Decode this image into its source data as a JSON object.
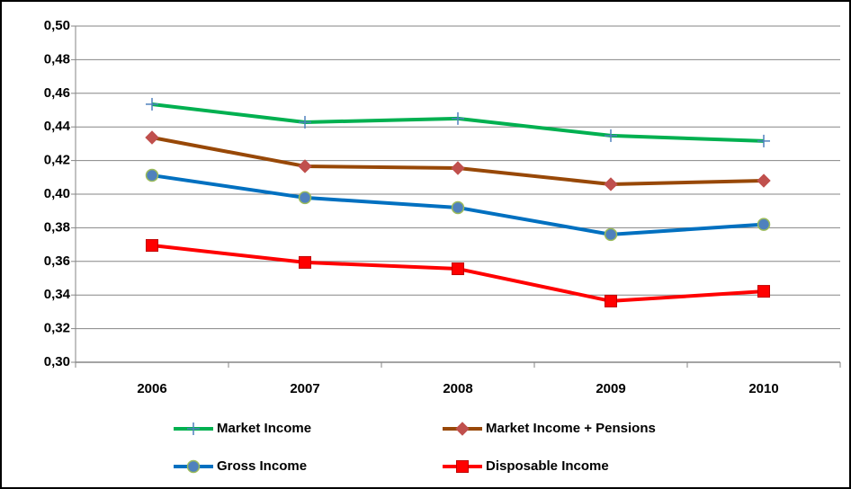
{
  "chart_data": {
    "type": "line",
    "categories": [
      "2006",
      "2007",
      "2008",
      "2009",
      "2010"
    ],
    "series": [
      {
        "name": "Market Income",
        "color": "#00b050",
        "marker": "plus",
        "marker_color": "#4f81bd",
        "values": [
          0.4535,
          0.4428,
          0.445,
          0.4348,
          0.4316
        ]
      },
      {
        "name": "Market Income + Pensions",
        "color": "#984807",
        "marker": "diamond",
        "marker_color": "#c0504d",
        "values": [
          0.4337,
          0.4166,
          0.4155,
          0.4059,
          0.408
        ]
      },
      {
        "name": "Gross Income",
        "color": "#0070c0",
        "marker": "circle",
        "marker_color": "#4f81bd",
        "values": [
          0.4112,
          0.3979,
          0.392,
          0.376,
          0.382
        ]
      },
      {
        "name": "Disposable Income",
        "color": "#ff0000",
        "marker": "square",
        "marker_color": "#ff0000",
        "values": [
          0.3695,
          0.3594,
          0.3556,
          0.3364,
          0.3422
        ]
      }
    ],
    "ylim": [
      0.3,
      0.5
    ],
    "yticks": [
      {
        "value": 0.3,
        "label": "0,30"
      },
      {
        "value": 0.32,
        "label": "0,32"
      },
      {
        "value": 0.34,
        "label": "0,34"
      },
      {
        "value": 0.36,
        "label": "0,36"
      },
      {
        "value": 0.38,
        "label": "0,38"
      },
      {
        "value": 0.4,
        "label": "0,40"
      },
      {
        "value": 0.42,
        "label": "0,42"
      },
      {
        "value": 0.44,
        "label": "0,44"
      },
      {
        "value": 0.46,
        "label": "0,46"
      },
      {
        "value": 0.48,
        "label": "0,48"
      },
      {
        "value": 0.5,
        "label": "0,50"
      }
    ],
    "grid": true
  }
}
